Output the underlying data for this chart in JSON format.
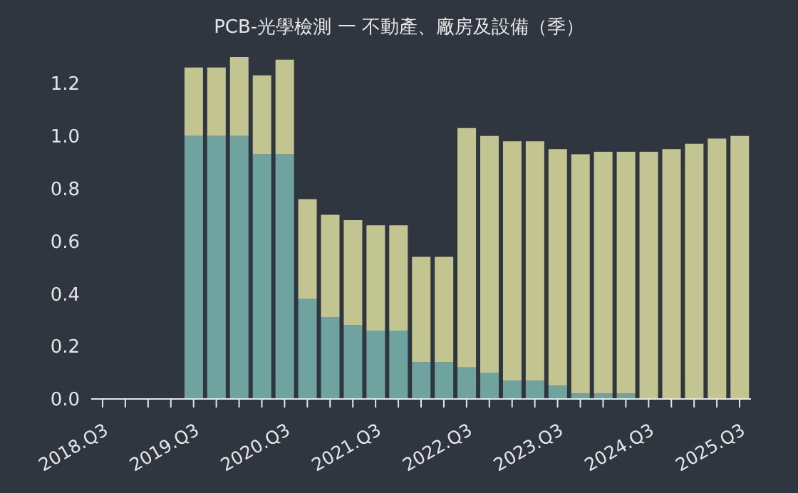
{
  "chart_data": {
    "type": "bar",
    "title": "PCB-光學檢測 一 不動產、廠房及設備（季）",
    "categories": [
      "2018.Q3",
      null,
      null,
      null,
      "2019.Q3",
      null,
      null,
      null,
      "2020.Q3",
      null,
      null,
      null,
      "2021.Q3",
      null,
      null,
      null,
      "2022.Q3",
      null,
      null,
      null,
      "2023.Q3",
      null,
      null,
      null,
      "2024.Q3",
      null,
      null,
      null,
      "2025.Q3"
    ],
    "stacked": true,
    "series": [
      {
        "color": "#6fa3a0",
        "values": [
          null,
          null,
          null,
          null,
          1.0,
          1.0,
          1.0,
          0.93,
          0.93,
          0.38,
          0.31,
          0.28,
          0.26,
          0.26,
          0.14,
          0.14,
          0.12,
          0.1,
          0.07,
          0.07,
          0.05,
          0.02,
          0.02,
          0.02,
          0,
          0,
          0,
          0,
          0
        ]
      },
      {
        "color": "#c2c58f",
        "values": [
          null,
          null,
          null,
          null,
          0.26,
          0.26,
          0.3,
          0.3,
          0.36,
          0.38,
          0.39,
          0.4,
          0.4,
          0.4,
          0.4,
          0.4,
          0.91,
          0.9,
          0.91,
          0.91,
          0.9,
          0.91,
          0.92,
          0.92,
          0.94,
          0.95,
          0.97,
          0.99,
          1.0
        ]
      }
    ],
    "ylim": [
      0,
      1.3
    ],
    "yticks": [
      {
        "value": 0,
        "label": "0.0"
      },
      0.2,
      0.4,
      0.6,
      0.8,
      {
        "value": 1,
        "label": "1.0"
      },
      1.2
    ],
    "grid": false,
    "legend": false
  }
}
